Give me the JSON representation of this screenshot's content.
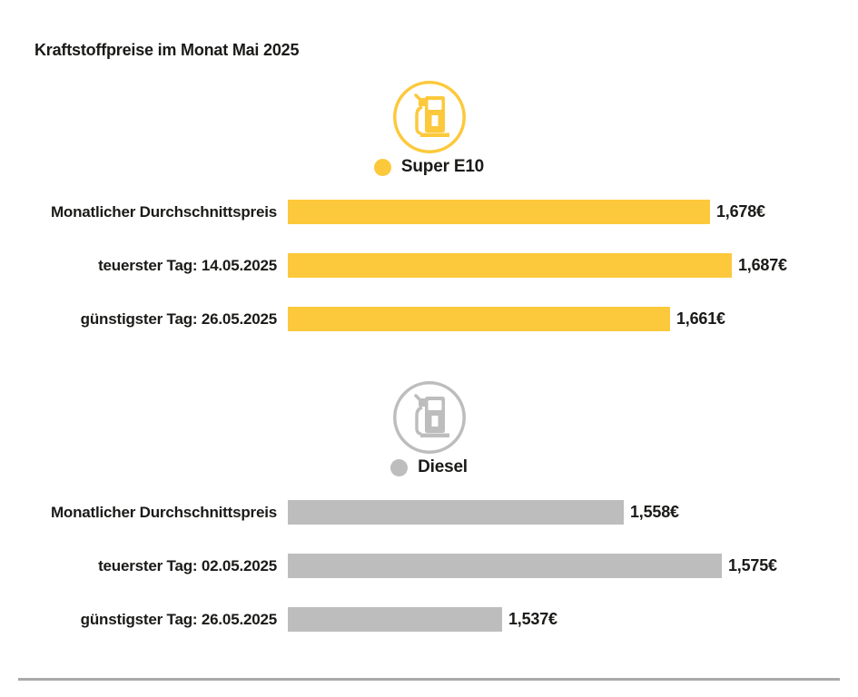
{
  "page": {
    "title": "Kraftstoffpreise im Monat Mai 2025"
  },
  "colors": {
    "super_e10": "#FCC93C",
    "diesel": "#BDBDBD",
    "text": "#1A1A18",
    "divider": "#A9A9A9"
  },
  "chart_data": {
    "type": "bar",
    "orientation": "horizontal",
    "title": "Kraftstoffpreise im Monat Mai 2025",
    "unit": "€",
    "axis_min": 1.5,
    "legend_position": "above-each-group",
    "grid": false,
    "groups": [
      {
        "name": "Super E10",
        "color": "#FCC93C",
        "icon": "fuel-pump-icon",
        "max_value": 1.687,
        "rows": [
          {
            "label": "Monatlicher Durchschnittspreis",
            "value": 1.678,
            "display": "1,678€"
          },
          {
            "label": "teuerster Tag: 14.05.2025",
            "value": 1.687,
            "display": "1,687€"
          },
          {
            "label": "günstigster Tag: 26.05.2025",
            "value": 1.661,
            "display": "1,661€"
          }
        ]
      },
      {
        "name": "Diesel",
        "color": "#BDBDBD",
        "icon": "fuel-pump-icon",
        "max_value": 1.575,
        "rows": [
          {
            "label": "Monatlicher Durchschnittspreis",
            "value": 1.558,
            "display": "1,558€"
          },
          {
            "label": "teuerster Tag: 02.05.2025",
            "value": 1.575,
            "display": "1,575€"
          },
          {
            "label": "günstigster Tag: 26.05.2025",
            "value": 1.537,
            "display": "1,537€"
          }
        ]
      }
    ]
  }
}
